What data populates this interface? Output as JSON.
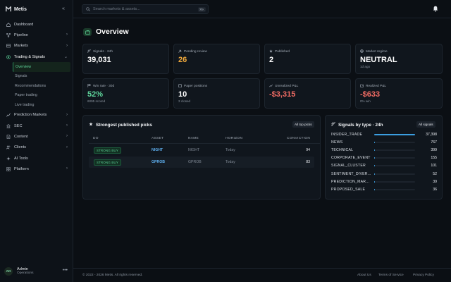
{
  "app": {
    "name": "Metis"
  },
  "sidebar": {
    "collapse_icon": "double-chevron-left-icon",
    "items": [
      {
        "label": "Dashboard",
        "icon": "home-icon",
        "has_children": false
      },
      {
        "label": "Pipeline",
        "icon": "pipeline-icon",
        "has_children": true
      },
      {
        "label": "Markets",
        "icon": "markets-icon",
        "has_children": true
      },
      {
        "label": "Trading & Signals",
        "icon": "target-icon",
        "has_children": true,
        "expanded": true,
        "children": [
          {
            "label": "Overview",
            "active": true
          },
          {
            "label": "Signals"
          },
          {
            "label": "Recommendations"
          },
          {
            "label": "Paper trading"
          },
          {
            "label": "Live trading"
          }
        ]
      },
      {
        "label": "Prediction Markets",
        "icon": "chart-icon",
        "has_children": true
      },
      {
        "label": "SEC",
        "icon": "building-icon",
        "has_children": true
      },
      {
        "label": "Content",
        "icon": "document-icon",
        "has_children": true
      },
      {
        "label": "Clients",
        "icon": "users-icon",
        "has_children": true
      },
      {
        "label": "AI Tools",
        "icon": "sparkle-icon",
        "has_children": false
      },
      {
        "label": "Platform",
        "icon": "grid-icon",
        "has_children": true
      }
    ],
    "user": {
      "initials": "AD",
      "name": "Admin",
      "role": "Operations"
    }
  },
  "topbar": {
    "search_placeholder": "Search markets & assets...",
    "search_shortcut": "⌘K"
  },
  "page": {
    "title": "Overview"
  },
  "stats": [
    {
      "label": "Signals · 24h",
      "value": "39,031",
      "sub": "",
      "tone": "default",
      "icon": "signal-icon"
    },
    {
      "label": "Pending review",
      "value": "26",
      "sub": "",
      "tone": "amber",
      "icon": "hammer-icon"
    },
    {
      "label": "Published",
      "value": "2",
      "sub": "",
      "tone": "default",
      "icon": "star-icon"
    },
    {
      "label": "Market regime",
      "value": "NEUTRAL",
      "sub": "1d ago",
      "tone": "default",
      "icon": "globe-icon"
    },
    {
      "label": "Win rate · 30d",
      "value": "52%",
      "sub": "6095 scored",
      "tone": "green",
      "icon": "flag-icon"
    },
    {
      "label": "Paper positions",
      "value": "10",
      "sub": "3 closed",
      "tone": "default",
      "icon": "clipboard-icon"
    },
    {
      "label": "Unrealized P&L",
      "value": "-$3,315",
      "sub": "",
      "tone": "red",
      "icon": "trend-icon"
    },
    {
      "label": "Realized P&L",
      "value": "-$633",
      "sub": "0% win",
      "tone": "red",
      "icon": "wallet-icon"
    }
  ],
  "picks": {
    "title": "Strongest published picks",
    "button": "All top picks",
    "columns": [
      "DO",
      "ASSET",
      "NAME",
      "HORIZON",
      "CONVICTION"
    ],
    "rows": [
      {
        "do": "STRONG BUY",
        "asset": "NIGHT",
        "name": "NIGHT",
        "horizon": "Today",
        "conviction": "94"
      },
      {
        "do": "STRONG BUY",
        "asset": "GPROB",
        "name": "GPROB",
        "horizon": "Today",
        "conviction": "83"
      }
    ]
  },
  "signals": {
    "title": "Signals by type · 24h",
    "button": "All signals",
    "max": 37398,
    "rows": [
      {
        "name": "INSIDER_TRADE",
        "count": 37398,
        "label": "37,398"
      },
      {
        "name": "NEWS",
        "count": 767,
        "label": "767"
      },
      {
        "name": "TECHNICAL",
        "count": 399,
        "label": "399"
      },
      {
        "name": "CORPORATE_EVENT",
        "count": 155,
        "label": "155"
      },
      {
        "name": "SIGNAL_CLUSTER",
        "count": 101,
        "label": "101"
      },
      {
        "name": "SENTIMENT_DIVER...",
        "count": 52,
        "label": "52"
      },
      {
        "name": "PREDICTION_MAR...",
        "count": 39,
        "label": "39"
      },
      {
        "name": "PROPOSED_SALE",
        "count": 36,
        "label": "36"
      }
    ]
  },
  "footer": {
    "copyright": "© 2022 - 2026 Metis. All rights reserved.",
    "links": [
      "About Us",
      "Terms of Service",
      "Privacy Policy"
    ]
  },
  "colors": {
    "accent": "#5ed39a",
    "amber": "#f0a93c",
    "red": "#ef6b63",
    "bar": "#3b9ee0",
    "background": "#0b0f14"
  }
}
